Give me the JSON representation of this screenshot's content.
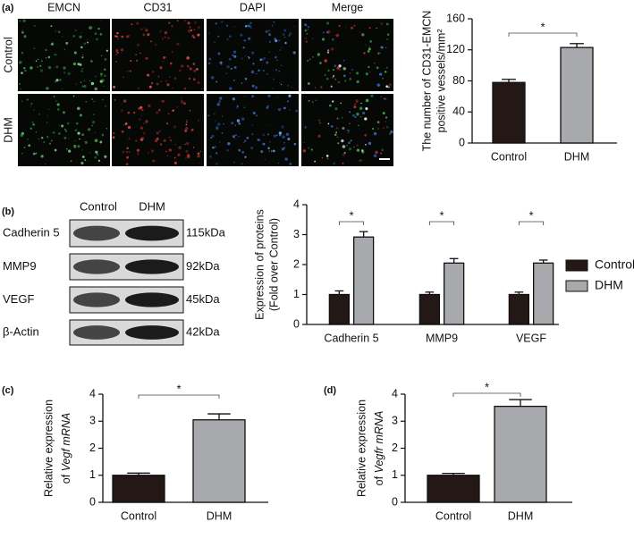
{
  "figure": {
    "panel_labels": [
      "(a)",
      "(b)",
      "(c)",
      "(d)"
    ],
    "image_columns": [
      "EMCN",
      "CD31",
      "DAPI",
      "Merge"
    ],
    "image_rows": [
      "Control",
      "DHM"
    ],
    "blot": {
      "columns": [
        "Control",
        "DHM"
      ],
      "rows": [
        {
          "protein": "Cadherin 5",
          "size": "115kDa"
        },
        {
          "protein": "MMP9",
          "size": "92kDa"
        },
        {
          "protein": "VEGF",
          "size": "45kDa"
        },
        {
          "protein": "β-Actin",
          "size": "42kDa"
        }
      ]
    }
  },
  "chart_data": [
    {
      "type": "bar",
      "y_label": [
        "The number of CD31-EMCN",
        "positive vessels/mm²"
      ],
      "categories": [
        "Control",
        "DHM"
      ],
      "values": [
        78,
        123
      ],
      "errors": [
        4,
        5
      ],
      "colors": [
        "#231815",
        "#a7a9ac"
      ],
      "ylim": [
        0,
        160
      ],
      "yticks": [
        0,
        40,
        80,
        120,
        160
      ],
      "annotations": [
        {
          "text": "*"
        }
      ]
    },
    {
      "type": "bar",
      "y_label": [
        "Expression of  proteins",
        "(Fold over Control)"
      ],
      "categories": [
        "Cadherin 5",
        "MMP9",
        "VEGF"
      ],
      "series": [
        {
          "name": "Control",
          "color": "#231815",
          "values": [
            1,
            1,
            1
          ],
          "errors": [
            0.12,
            0.08,
            0.08
          ]
        },
        {
          "name": "DHM",
          "color": "#a7a9ac",
          "values": [
            2.92,
            2.05,
            2.05
          ],
          "errors": [
            0.18,
            0.15,
            0.1
          ]
        }
      ],
      "ylim": [
        0,
        4
      ],
      "yticks": [
        0,
        1,
        2,
        3,
        4
      ],
      "legend": "right",
      "annotations": [
        {
          "text": "*"
        },
        {
          "text": "*"
        },
        {
          "text": "*"
        }
      ]
    },
    {
      "type": "bar",
      "y_label": [
        "Relative expression",
        "of"
      ],
      "y_label_italic": "Vegf mRNA",
      "categories": [
        "Control",
        "DHM"
      ],
      "values": [
        1,
        3.05
      ],
      "errors": [
        0.08,
        0.22
      ],
      "colors": [
        "#231815",
        "#a7a9ac"
      ],
      "ylim": [
        0,
        4
      ],
      "yticks": [
        0,
        1,
        2,
        3,
        4
      ],
      "annotations": [
        {
          "text": "*"
        }
      ]
    },
    {
      "type": "bar",
      "y_label": [
        "Relative expression",
        "of"
      ],
      "y_label_italic": "Vegfr mRNA",
      "categories": [
        "Control",
        "DHM"
      ],
      "values": [
        1,
        3.55
      ],
      "errors": [
        0.07,
        0.25
      ],
      "colors": [
        "#231815",
        "#a7a9ac"
      ],
      "ylim": [
        0,
        4
      ],
      "yticks": [
        0,
        1,
        2,
        3,
        4
      ],
      "annotations": [
        {
          "text": "*"
        }
      ]
    }
  ]
}
